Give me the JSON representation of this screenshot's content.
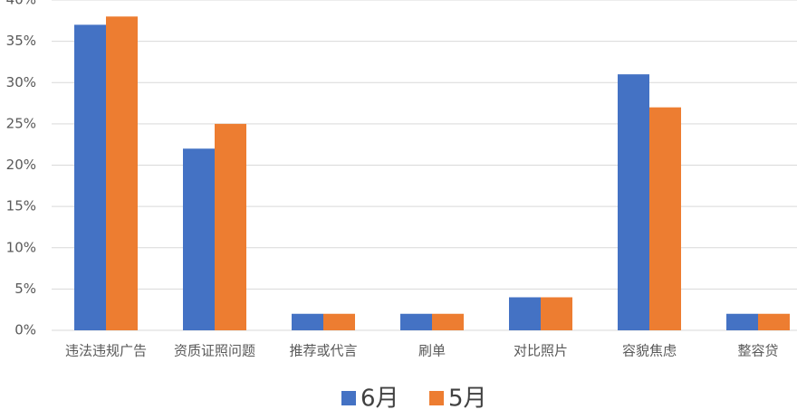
{
  "chart_data": {
    "type": "bar",
    "categories": [
      "违法违规广告",
      "资质证照问题",
      "推荐或代言",
      "刷单",
      "对比照片",
      "容貌焦虑",
      "整容贷"
    ],
    "series": [
      {
        "name": "6月",
        "color": "#4472c4",
        "values": [
          37,
          22,
          2,
          2,
          4,
          31,
          2
        ]
      },
      {
        "name": "5月",
        "color": "#ed7d31",
        "values": [
          38,
          25,
          2,
          2,
          4,
          27,
          2
        ]
      }
    ],
    "ylim": [
      0,
      40
    ],
    "yticks": [
      {
        "value": 0,
        "label": "0%"
      },
      {
        "value": 5,
        "label": "5%"
      },
      {
        "value": 10,
        "label": "10%"
      },
      {
        "value": 15,
        "label": "15%"
      },
      {
        "value": 20,
        "label": "20%"
      },
      {
        "value": 25,
        "label": "25%"
      },
      {
        "value": 30,
        "label": "30%"
      },
      {
        "value": 35,
        "label": "35%"
      },
      {
        "value": 40,
        "label": "40%"
      }
    ],
    "grid": true,
    "legend": "bottom"
  }
}
